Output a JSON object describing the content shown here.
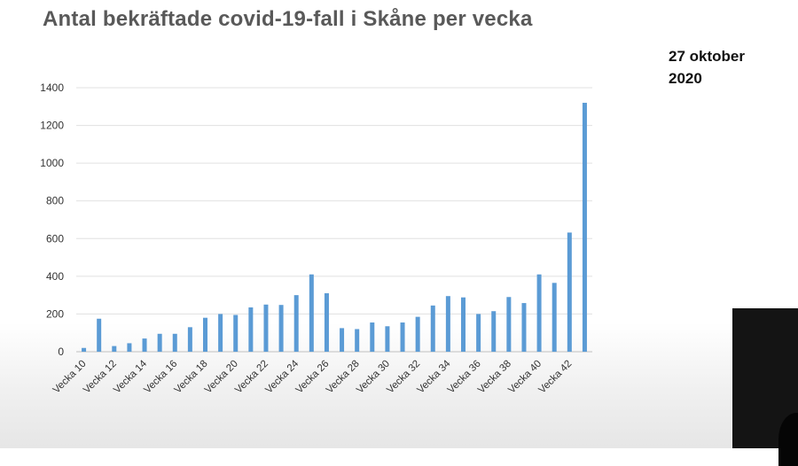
{
  "slide": {
    "title": "Antal bekräftade covid-19-fall i Skåne per vecka",
    "date_line1": "27 oktober",
    "date_line2": "2020"
  },
  "chart_data": {
    "type": "bar",
    "title": "",
    "xlabel": "",
    "ylabel": "",
    "ylim": [
      0,
      1400
    ],
    "yticks": [
      0,
      200,
      400,
      600,
      800,
      1000,
      1200,
      1400
    ],
    "grid": true,
    "bar_color": "#5b9bd5",
    "categories": [
      "Vecka 10",
      "Vecka 11",
      "Vecka 12",
      "Vecka 13",
      "Vecka 14",
      "Vecka 15",
      "Vecka 16",
      "Vecka 17",
      "Vecka 18",
      "Vecka 19",
      "Vecka 20",
      "Vecka 21",
      "Vecka 22",
      "Vecka 23",
      "Vecka 24",
      "Vecka 25",
      "Vecka 26",
      "Vecka 27",
      "Vecka 28",
      "Vecka 29",
      "Vecka 30",
      "Vecka 31",
      "Vecka 32",
      "Vecka 33",
      "Vecka 34",
      "Vecka 35",
      "Vecka 36",
      "Vecka 37",
      "Vecka 38",
      "Vecka 39",
      "Vecka 40",
      "Vecka 41",
      "Vecka 42",
      "Vecka 43"
    ],
    "visible_tick_labels": [
      "Vecka 10",
      "Vecka 12",
      "Vecka 14",
      "Vecka 16",
      "Vecka 18",
      "Vecka 20",
      "Vecka 22",
      "Vecka 24",
      "Vecka 26",
      "Vecka 28",
      "Vecka 30",
      "Vecka 32",
      "Vecka 34",
      "Vecka 36",
      "Vecka 38",
      "Vecka 40",
      "Vecka 42"
    ],
    "values": [
      20,
      175,
      30,
      45,
      70,
      95,
      95,
      130,
      180,
      200,
      195,
      235,
      250,
      248,
      300,
      410,
      310,
      125,
      120,
      155,
      135,
      155,
      185,
      245,
      295,
      288,
      200,
      215,
      290,
      258,
      410,
      365,
      632,
      1320
    ]
  }
}
